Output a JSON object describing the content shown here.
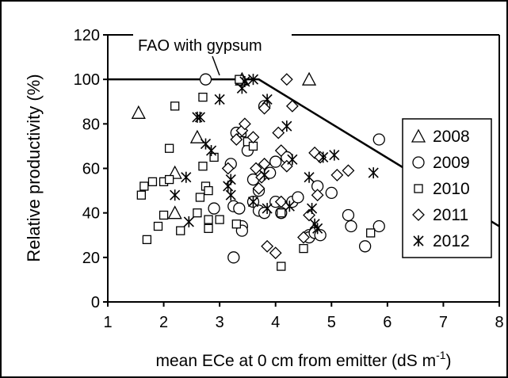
{
  "chart_data": {
    "type": "scatter",
    "xlabel": "mean ECe at 0 cm from emitter (dS m",
    "xlabel_sup": "-1",
    "xlabel_end": ")",
    "ylabel": "Relative productivity (%)",
    "xlim": [
      1,
      8
    ],
    "ylim": [
      0,
      120
    ],
    "xticks": [
      1,
      2,
      3,
      4,
      5,
      6,
      7,
      8
    ],
    "yticks": [
      0,
      20,
      40,
      60,
      80,
      100,
      120
    ],
    "grid": false,
    "legend_position": "right",
    "annotation": "FAO with gypsum",
    "fao_line": {
      "x": [
        1,
        3.7,
        8
      ],
      "y": [
        100,
        100,
        34
      ]
    },
    "series": [
      {
        "name": "2008",
        "marker": "triangle",
        "points": [
          [
            1.55,
            85
          ],
          [
            2.2,
            58
          ],
          [
            2.2,
            40
          ],
          [
            2.6,
            74
          ],
          [
            3.4,
            100
          ],
          [
            4.6,
            100
          ]
        ]
      },
      {
        "name": "2009",
        "marker": "circle",
        "points": [
          [
            2.75,
            100
          ],
          [
            2.9,
            42
          ],
          [
            3.2,
            62
          ],
          [
            3.25,
            20
          ],
          [
            3.25,
            43
          ],
          [
            3.3,
            76
          ],
          [
            3.35,
            42
          ],
          [
            3.4,
            34
          ],
          [
            3.4,
            32
          ],
          [
            3.5,
            68
          ],
          [
            3.6,
            55
          ],
          [
            3.6,
            45
          ],
          [
            3.7,
            41
          ],
          [
            3.7,
            50
          ],
          [
            3.8,
            40
          ],
          [
            3.8,
            88
          ],
          [
            3.9,
            58
          ],
          [
            4.0,
            45
          ],
          [
            4.0,
            63
          ],
          [
            4.1,
            40
          ],
          [
            4.2,
            65
          ],
          [
            4.3,
            45
          ],
          [
            4.4,
            47
          ],
          [
            4.6,
            30
          ],
          [
            4.6,
            29
          ],
          [
            4.7,
            31
          ],
          [
            4.75,
            52
          ],
          [
            4.8,
            30
          ],
          [
            5.0,
            49
          ],
          [
            5.3,
            39
          ],
          [
            5.35,
            34
          ],
          [
            5.6,
            25
          ],
          [
            5.85,
            73
          ],
          [
            5.85,
            34
          ]
        ]
      },
      {
        "name": "2010",
        "marker": "square",
        "points": [
          [
            1.6,
            48
          ],
          [
            1.65,
            52
          ],
          [
            1.7,
            28
          ],
          [
            1.8,
            54
          ],
          [
            1.9,
            34
          ],
          [
            2.0,
            54
          ],
          [
            2.0,
            39
          ],
          [
            2.1,
            69
          ],
          [
            2.1,
            55
          ],
          [
            2.2,
            88
          ],
          [
            2.3,
            32
          ],
          [
            2.6,
            40
          ],
          [
            2.65,
            47
          ],
          [
            2.7,
            61
          ],
          [
            2.7,
            92
          ],
          [
            2.75,
            52
          ],
          [
            2.8,
            50
          ],
          [
            2.8,
            37
          ],
          [
            2.8,
            33
          ],
          [
            2.9,
            65
          ],
          [
            3.0,
            37
          ],
          [
            3.3,
            35
          ],
          [
            3.35,
            100
          ],
          [
            3.4,
            76
          ],
          [
            3.5,
            72
          ],
          [
            3.6,
            70
          ],
          [
            4.1,
            40
          ],
          [
            4.1,
            16
          ],
          [
            4.5,
            24
          ],
          [
            5.7,
            31
          ]
        ]
      },
      {
        "name": "2011",
        "marker": "diamond",
        "points": [
          [
            3.15,
            60
          ],
          [
            3.3,
            73
          ],
          [
            3.4,
            77
          ],
          [
            3.45,
            80
          ],
          [
            3.6,
            74
          ],
          [
            3.65,
            60
          ],
          [
            3.7,
            51
          ],
          [
            3.75,
            56
          ],
          [
            3.8,
            62
          ],
          [
            3.8,
            87
          ],
          [
            3.85,
            25
          ],
          [
            4.0,
            22
          ],
          [
            4.05,
            76
          ],
          [
            4.1,
            68
          ],
          [
            4.1,
            45
          ],
          [
            4.2,
            100
          ],
          [
            4.2,
            61
          ],
          [
            4.3,
            88
          ],
          [
            4.5,
            29
          ],
          [
            4.6,
            39
          ],
          [
            4.7,
            67
          ],
          [
            4.75,
            48
          ],
          [
            4.8,
            65
          ],
          [
            5.1,
            57
          ],
          [
            5.3,
            59
          ]
        ]
      },
      {
        "name": "2012",
        "marker": "asterisk",
        "points": [
          [
            2.2,
            48
          ],
          [
            2.4,
            56
          ],
          [
            2.45,
            36
          ],
          [
            2.6,
            83
          ],
          [
            2.65,
            83
          ],
          [
            2.75,
            71
          ],
          [
            2.85,
            68
          ],
          [
            3.0,
            91
          ],
          [
            3.15,
            52
          ],
          [
            3.2,
            55
          ],
          [
            3.2,
            48
          ],
          [
            3.4,
            96
          ],
          [
            3.45,
            99
          ],
          [
            3.6,
            100
          ],
          [
            3.6,
            45
          ],
          [
            3.8,
            57
          ],
          [
            3.85,
            91
          ],
          [
            3.85,
            42
          ],
          [
            4.2,
            79
          ],
          [
            4.25,
            43
          ],
          [
            4.3,
            64
          ],
          [
            4.6,
            56
          ],
          [
            4.65,
            42
          ],
          [
            4.7,
            35
          ],
          [
            4.75,
            33
          ],
          [
            4.85,
            65
          ],
          [
            5.05,
            66
          ],
          [
            5.75,
            58
          ]
        ]
      }
    ]
  }
}
